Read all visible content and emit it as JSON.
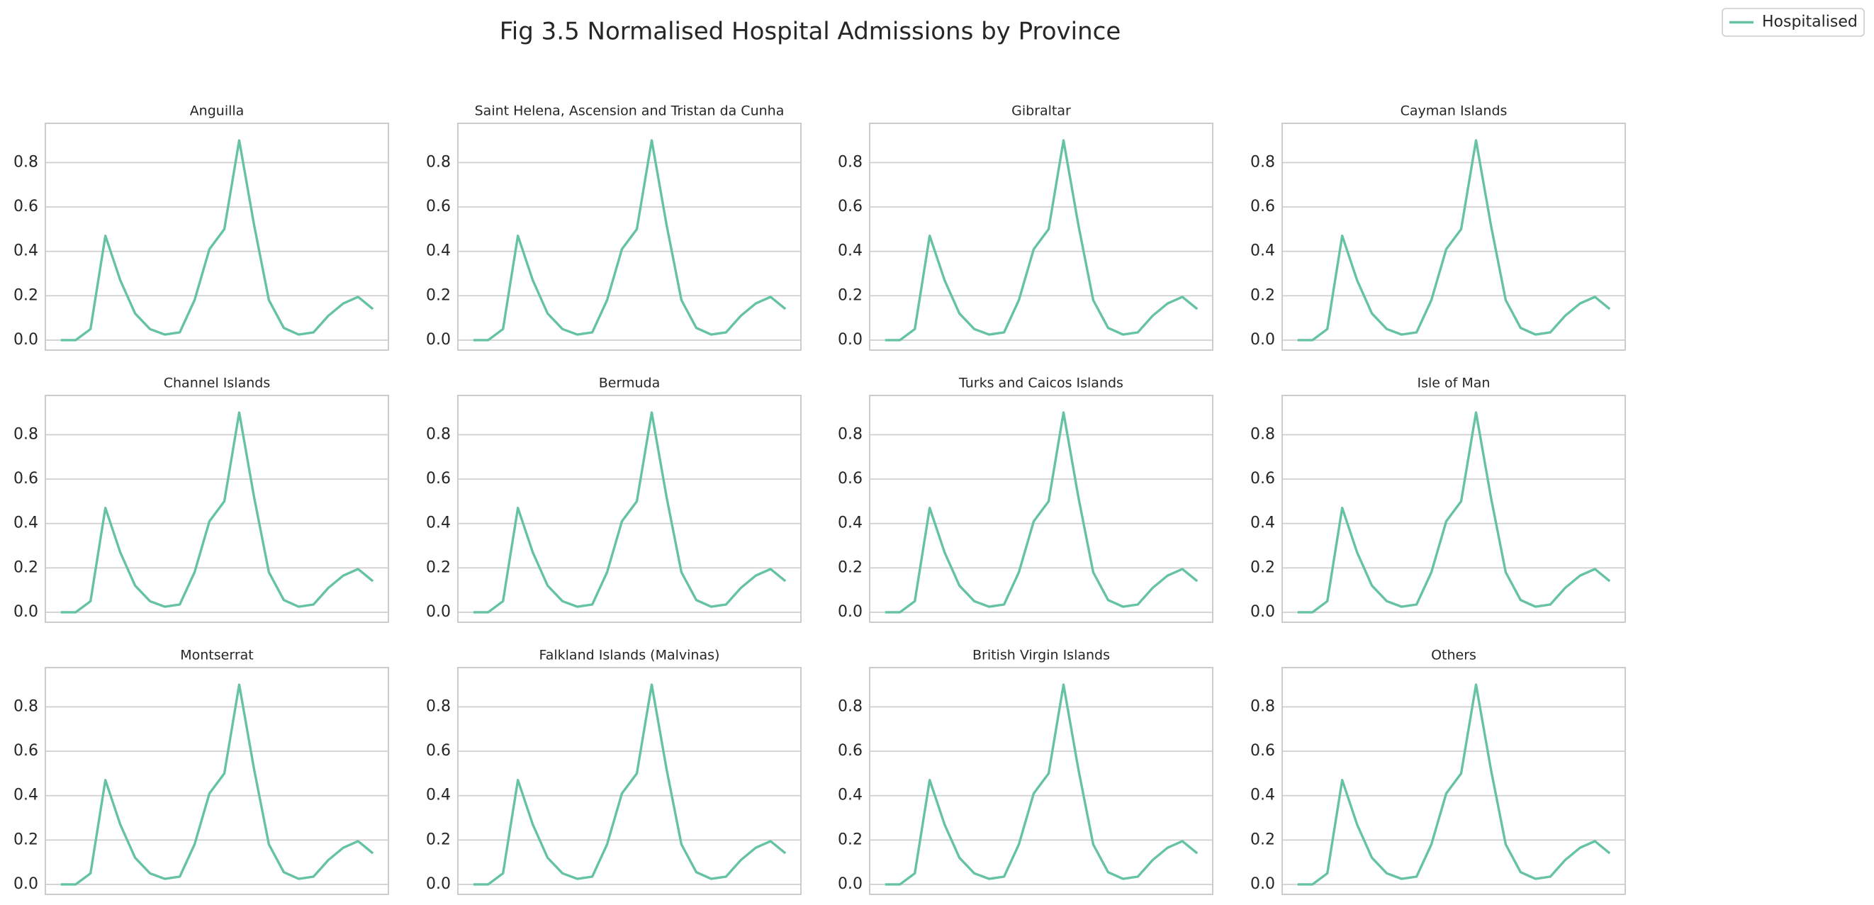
{
  "title": "Fig 3.5 Normalised Hospital Admissions by Province",
  "legend": "upper right",
  "chart_data": [
    {
      "type": "line",
      "title": "Anguilla",
      "series": [
        {
          "name": "Hospitalised",
          "color": "#66c2a5",
          "values": [
            0,
            0,
            0.05,
            0.47,
            0.27,
            0.12,
            0.05,
            0.025,
            0.035,
            0.18,
            0.41,
            0.5,
            0.9,
            0.52,
            0.18,
            0.055,
            0.025,
            0.035,
            0.11,
            0.165,
            0.195,
            0.14
          ]
        }
      ],
      "ylim": [
        -0.045,
        0.977
      ],
      "yticks": [
        {
          "value": 0,
          "label": "0.0"
        },
        0.2,
        0.4,
        0.6,
        0.8
      ],
      "grid": true
    },
    {
      "type": "line",
      "title": "Saint Helena, Ascension and Tristan da Cunha",
      "series": [
        {
          "name": "Hospitalised",
          "color": "#66c2a5",
          "values": [
            0,
            0,
            0.05,
            0.47,
            0.27,
            0.12,
            0.05,
            0.025,
            0.035,
            0.18,
            0.41,
            0.5,
            0.9,
            0.52,
            0.18,
            0.055,
            0.025,
            0.035,
            0.11,
            0.165,
            0.195,
            0.14
          ]
        }
      ],
      "ylim": [
        -0.045,
        0.977
      ],
      "yticks": [
        {
          "value": 0,
          "label": "0.0"
        },
        0.2,
        0.4,
        0.6,
        0.8
      ],
      "grid": true
    },
    {
      "type": "line",
      "title": "Gibraltar",
      "series": [
        {
          "name": "Hospitalised",
          "color": "#66c2a5",
          "values": [
            0,
            0,
            0.05,
            0.47,
            0.27,
            0.12,
            0.05,
            0.025,
            0.035,
            0.18,
            0.41,
            0.5,
            0.9,
            0.52,
            0.18,
            0.055,
            0.025,
            0.035,
            0.11,
            0.165,
            0.195,
            0.14
          ]
        }
      ],
      "ylim": [
        -0.045,
        0.977
      ],
      "yticks": [
        {
          "value": 0,
          "label": "0.0"
        },
        0.2,
        0.4,
        0.6,
        0.8
      ],
      "grid": true
    },
    {
      "type": "line",
      "title": "Cayman Islands",
      "series": [
        {
          "name": "Hospitalised",
          "color": "#66c2a5",
          "values": [
            0,
            0,
            0.05,
            0.47,
            0.27,
            0.12,
            0.05,
            0.025,
            0.035,
            0.18,
            0.41,
            0.5,
            0.9,
            0.52,
            0.18,
            0.055,
            0.025,
            0.035,
            0.11,
            0.165,
            0.195,
            0.14
          ]
        }
      ],
      "ylim": [
        -0.045,
        0.977
      ],
      "yticks": [
        {
          "value": 0,
          "label": "0.0"
        },
        0.2,
        0.4,
        0.6,
        0.8
      ],
      "grid": true
    },
    {
      "type": "line",
      "title": "Channel Islands",
      "series": [
        {
          "name": "Hospitalised",
          "color": "#66c2a5",
          "values": [
            0,
            0,
            0.05,
            0.47,
            0.27,
            0.12,
            0.05,
            0.025,
            0.035,
            0.18,
            0.41,
            0.5,
            0.9,
            0.52,
            0.18,
            0.055,
            0.025,
            0.035,
            0.11,
            0.165,
            0.195,
            0.14
          ]
        }
      ],
      "ylim": [
        -0.045,
        0.977
      ],
      "yticks": [
        {
          "value": 0,
          "label": "0.0"
        },
        0.2,
        0.4,
        0.6,
        0.8
      ],
      "grid": true
    },
    {
      "type": "line",
      "title": "Bermuda",
      "series": [
        {
          "name": "Hospitalised",
          "color": "#66c2a5",
          "values": [
            0,
            0,
            0.05,
            0.47,
            0.27,
            0.12,
            0.05,
            0.025,
            0.035,
            0.18,
            0.41,
            0.5,
            0.9,
            0.52,
            0.18,
            0.055,
            0.025,
            0.035,
            0.11,
            0.165,
            0.195,
            0.14
          ]
        }
      ],
      "ylim": [
        -0.045,
        0.977
      ],
      "yticks": [
        {
          "value": 0,
          "label": "0.0"
        },
        0.2,
        0.4,
        0.6,
        0.8
      ],
      "grid": true
    },
    {
      "type": "line",
      "title": "Turks and Caicos Islands",
      "series": [
        {
          "name": "Hospitalised",
          "color": "#66c2a5",
          "values": [
            0,
            0,
            0.05,
            0.47,
            0.27,
            0.12,
            0.05,
            0.025,
            0.035,
            0.18,
            0.41,
            0.5,
            0.9,
            0.52,
            0.18,
            0.055,
            0.025,
            0.035,
            0.11,
            0.165,
            0.195,
            0.14
          ]
        }
      ],
      "ylim": [
        -0.045,
        0.977
      ],
      "yticks": [
        {
          "value": 0,
          "label": "0.0"
        },
        0.2,
        0.4,
        0.6,
        0.8
      ],
      "grid": true
    },
    {
      "type": "line",
      "title": "Isle of Man",
      "series": [
        {
          "name": "Hospitalised",
          "color": "#66c2a5",
          "values": [
            0,
            0,
            0.05,
            0.47,
            0.27,
            0.12,
            0.05,
            0.025,
            0.035,
            0.18,
            0.41,
            0.5,
            0.9,
            0.52,
            0.18,
            0.055,
            0.025,
            0.035,
            0.11,
            0.165,
            0.195,
            0.14
          ]
        }
      ],
      "ylim": [
        -0.045,
        0.977
      ],
      "yticks": [
        {
          "value": 0,
          "label": "0.0"
        },
        0.2,
        0.4,
        0.6,
        0.8
      ],
      "grid": true
    },
    {
      "type": "line",
      "title": "Montserrat",
      "series": [
        {
          "name": "Hospitalised",
          "color": "#66c2a5",
          "values": [
            0,
            0,
            0.05,
            0.47,
            0.27,
            0.12,
            0.05,
            0.025,
            0.035,
            0.18,
            0.41,
            0.5,
            0.9,
            0.52,
            0.18,
            0.055,
            0.025,
            0.035,
            0.11,
            0.165,
            0.195,
            0.14
          ]
        }
      ],
      "ylim": [
        -0.045,
        0.977
      ],
      "yticks": [
        {
          "value": 0,
          "label": "0.0"
        },
        0.2,
        0.4,
        0.6,
        0.8
      ],
      "grid": true
    },
    {
      "type": "line",
      "title": "Falkland Islands (Malvinas)",
      "series": [
        {
          "name": "Hospitalised",
          "color": "#66c2a5",
          "values": [
            0,
            0,
            0.05,
            0.47,
            0.27,
            0.12,
            0.05,
            0.025,
            0.035,
            0.18,
            0.41,
            0.5,
            0.9,
            0.52,
            0.18,
            0.055,
            0.025,
            0.035,
            0.11,
            0.165,
            0.195,
            0.14
          ]
        }
      ],
      "ylim": [
        -0.045,
        0.977
      ],
      "yticks": [
        {
          "value": 0,
          "label": "0.0"
        },
        0.2,
        0.4,
        0.6,
        0.8
      ],
      "grid": true
    },
    {
      "type": "line",
      "title": "British Virgin Islands",
      "series": [
        {
          "name": "Hospitalised",
          "color": "#66c2a5",
          "values": [
            0,
            0,
            0.05,
            0.47,
            0.27,
            0.12,
            0.05,
            0.025,
            0.035,
            0.18,
            0.41,
            0.5,
            0.9,
            0.52,
            0.18,
            0.055,
            0.025,
            0.035,
            0.11,
            0.165,
            0.195,
            0.14
          ]
        }
      ],
      "ylim": [
        -0.045,
        0.977
      ],
      "yticks": [
        {
          "value": 0,
          "label": "0.0"
        },
        0.2,
        0.4,
        0.6,
        0.8
      ],
      "grid": true
    },
    {
      "type": "line",
      "title": "Others",
      "series": [
        {
          "name": "Hospitalised",
          "color": "#66c2a5",
          "values": [
            0,
            0,
            0.05,
            0.47,
            0.27,
            0.12,
            0.05,
            0.025,
            0.035,
            0.18,
            0.41,
            0.5,
            0.9,
            0.52,
            0.18,
            0.055,
            0.025,
            0.035,
            0.11,
            0.165,
            0.195,
            0.14
          ]
        }
      ],
      "ylim": [
        -0.045,
        0.977
      ],
      "yticks": [
        {
          "value": 0,
          "label": "0.0"
        },
        0.2,
        0.4,
        0.6,
        0.8
      ],
      "grid": true
    }
  ]
}
